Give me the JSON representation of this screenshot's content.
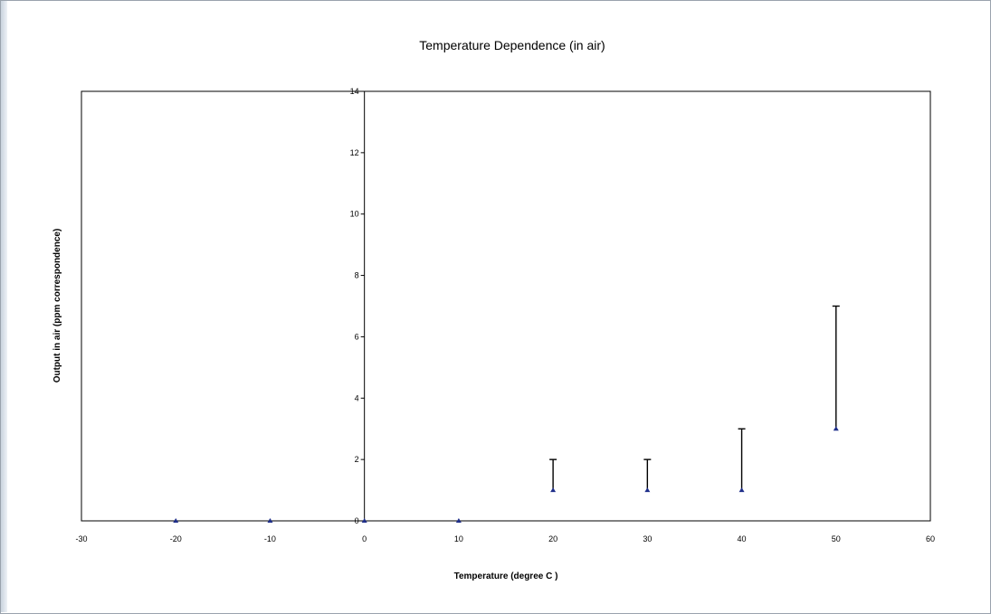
{
  "chart_data": {
    "type": "scatter",
    "title": "Temperature Dependence (in air)",
    "xlabel": "Temperature (degree C )",
    "ylabel": "Output in air (ppm correspondence)",
    "xlim": [
      -30,
      60
    ],
    "ylim": [
      0,
      14
    ],
    "x_ticks": [
      -30,
      -20,
      -10,
      0,
      10,
      20,
      30,
      40,
      50,
      60
    ],
    "y_ticks": [
      0,
      2,
      4,
      6,
      8,
      10,
      12,
      14
    ],
    "grid": false,
    "legend": "none",
    "marker_color": "#1f2f8a",
    "series": [
      {
        "x": [
          -20,
          -10,
          0,
          10,
          20,
          30,
          40,
          50
        ],
        "y": [
          0,
          0,
          0,
          0,
          1,
          1,
          1,
          3
        ],
        "error_upper": [
          0,
          0,
          0,
          0,
          2,
          2,
          3,
          7
        ]
      }
    ]
  }
}
